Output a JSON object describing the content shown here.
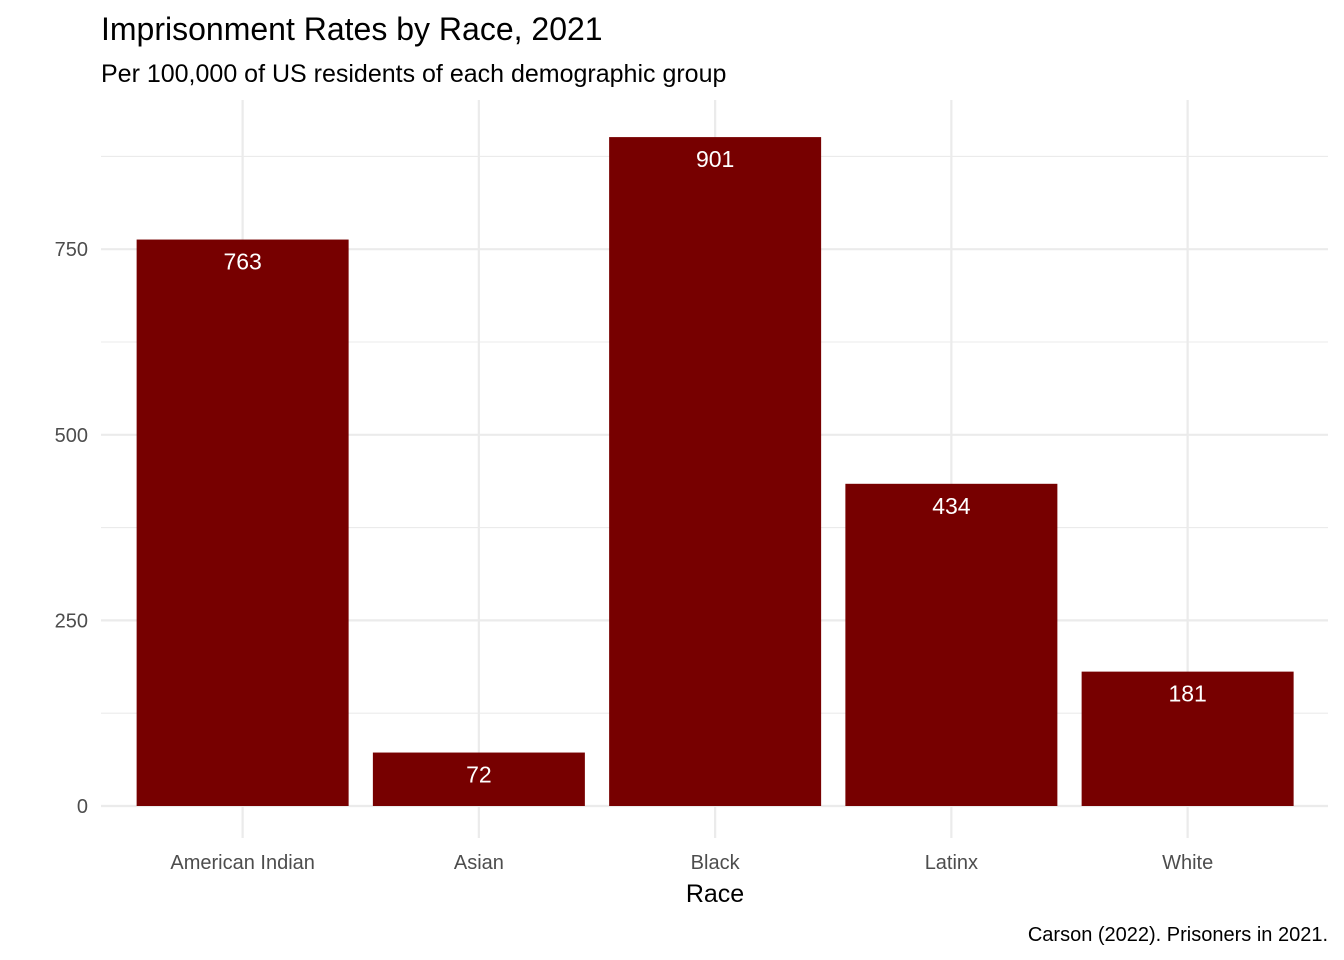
{
  "chart_data": {
    "type": "bar",
    "title": "Imprisonment Rates by Race, 2021",
    "subtitle": "Per 100,000 of US residents of each demographic group",
    "xlabel": "Race",
    "ylabel": "",
    "caption": "Carson (2022). Prisoners in 2021.",
    "categories": [
      "American Indian",
      "Asian",
      "Black",
      "Latinx",
      "White"
    ],
    "values": [
      763,
      72,
      901,
      434,
      181
    ],
    "value_labels": [
      "763",
      "72",
      "901",
      "434",
      "181"
    ],
    "ylim": [
      0,
      946
    ],
    "yticks": [
      0,
      250,
      500,
      750
    ],
    "ytick_labels": [
      "0",
      "250",
      "500",
      "750"
    ],
    "grid": true,
    "legend": "none",
    "bar_color": "#770000",
    "label_color": "#ffffff"
  }
}
